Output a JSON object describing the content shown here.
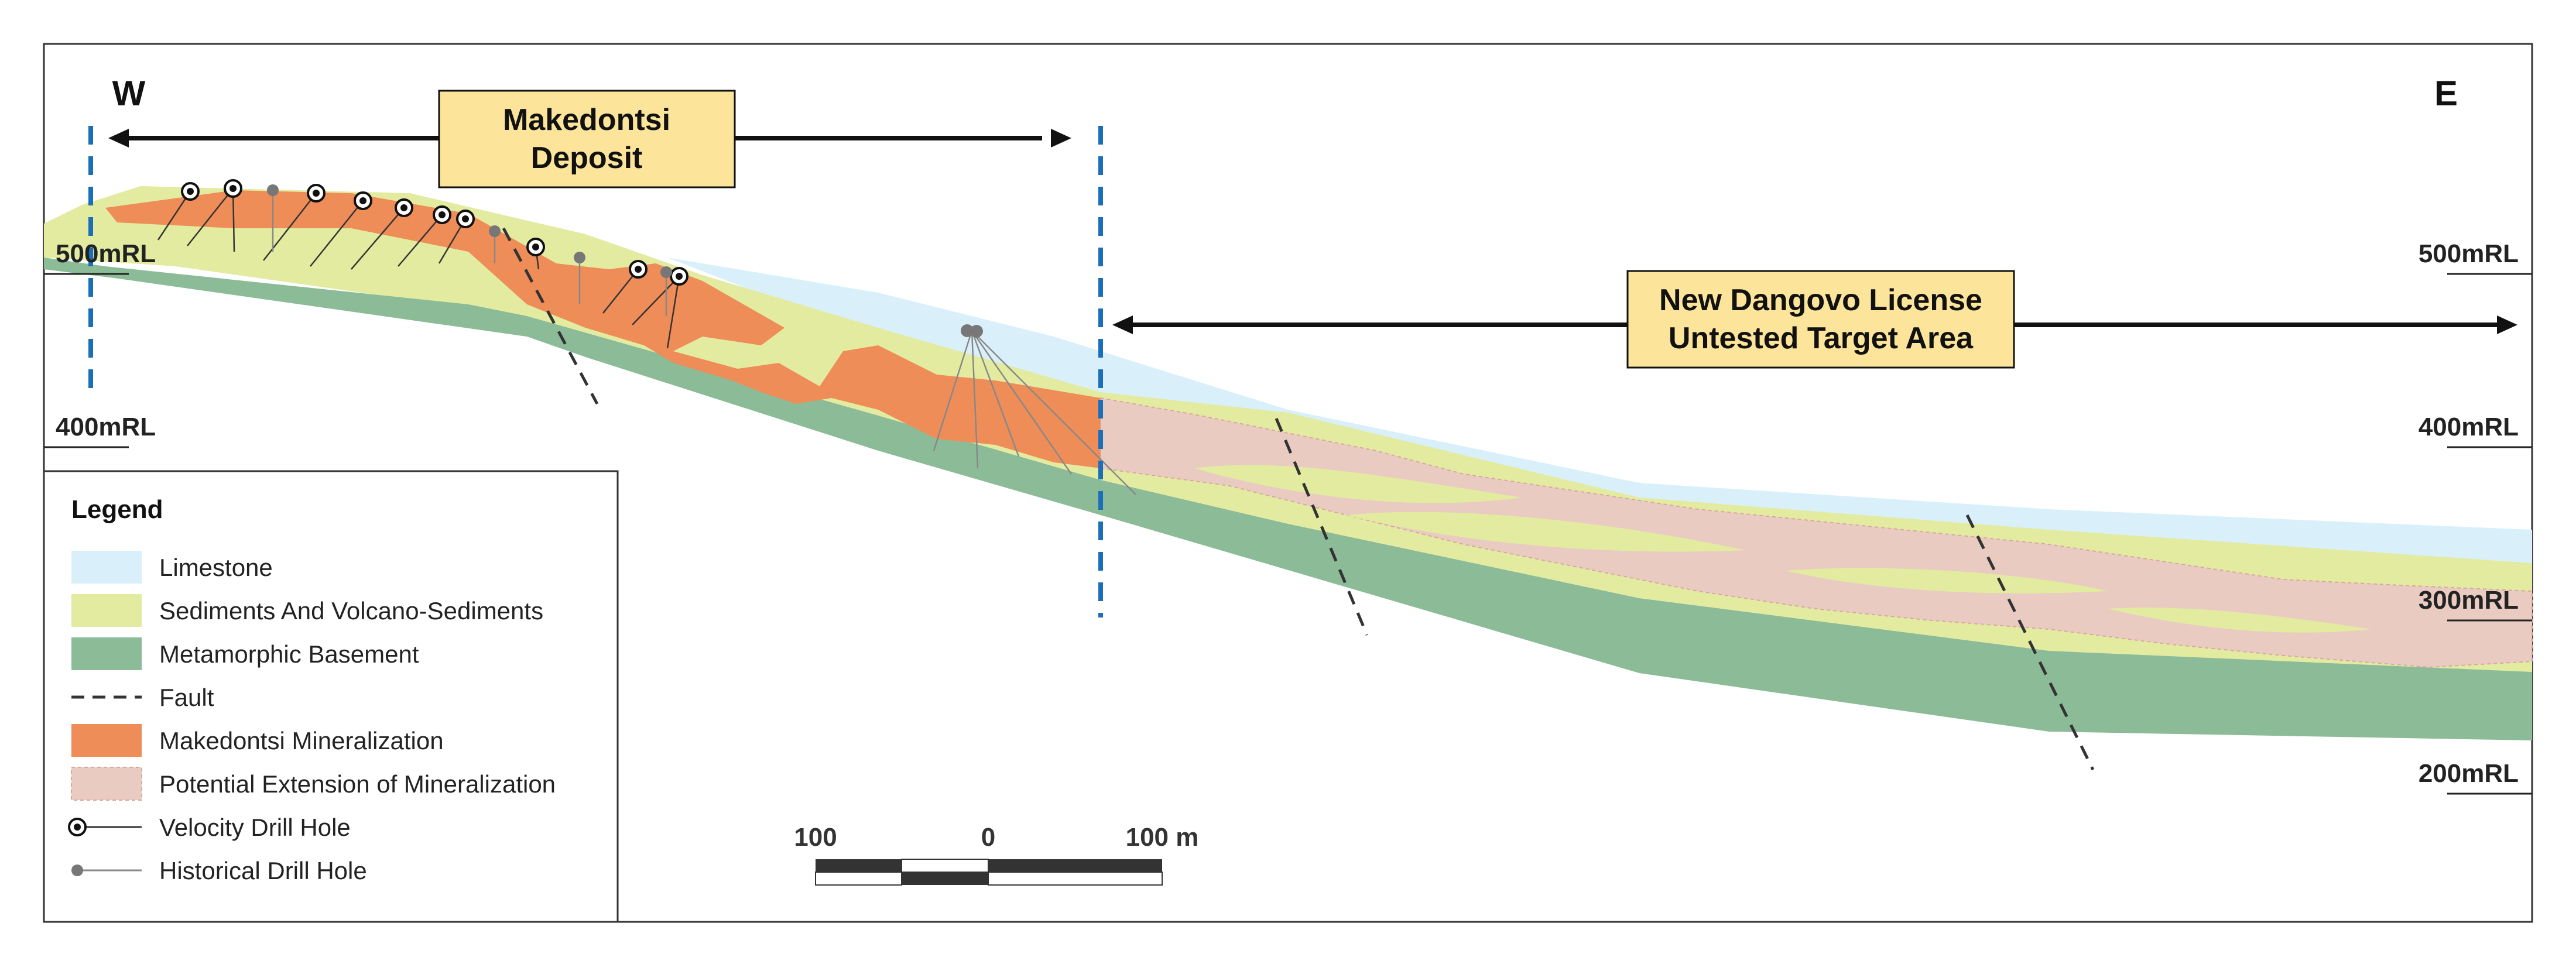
{
  "compass": {
    "west": "W",
    "east": "E"
  },
  "callouts": {
    "makedontsi": [
      "Makedontsi",
      "Deposit"
    ],
    "dangovo": [
      "New Dangovo License",
      "Untested Target Area"
    ]
  },
  "rl_labels": {
    "left": [
      "500mRL",
      "400mRL"
    ],
    "right": [
      "500mRL",
      "400mRL",
      "300mRL",
      "200mRL"
    ]
  },
  "legend": {
    "title": "Legend",
    "items": [
      {
        "label": "Limestone",
        "icon": "swatch",
        "color": "#d9f0fb"
      },
      {
        "label": "Sediments And Volcano-Sediments",
        "icon": "swatch",
        "color": "#e3eba0"
      },
      {
        "label": "Metamorphic Basement",
        "icon": "swatch",
        "color": "#8cbb97"
      },
      {
        "label": "Fault",
        "icon": "dashed-line",
        "color": "#333333"
      },
      {
        "label": "Makedontsi Mineralization",
        "icon": "swatch",
        "color": "#ee8d58"
      },
      {
        "label": "Potential Extension of Mineralization",
        "icon": "swatch",
        "color": "#e9cbc2"
      },
      {
        "label": "Velocity Drill Hole",
        "icon": "velocity-hole",
        "color": "#111111"
      },
      {
        "label": "Historical Drill Hole",
        "icon": "historical-hole",
        "color": "#777777"
      }
    ]
  },
  "scale_bar": {
    "left": "100",
    "center": "0",
    "right": "100 m"
  },
  "colors": {
    "limestone": "#d9f0fb",
    "sediments": "#e3eba0",
    "basement": "#8cbb97",
    "mineralization": "#ee8d58",
    "extension": "#e9cbc2",
    "boundary": "#1b6fb8",
    "callout_fill": "#fce49b"
  }
}
